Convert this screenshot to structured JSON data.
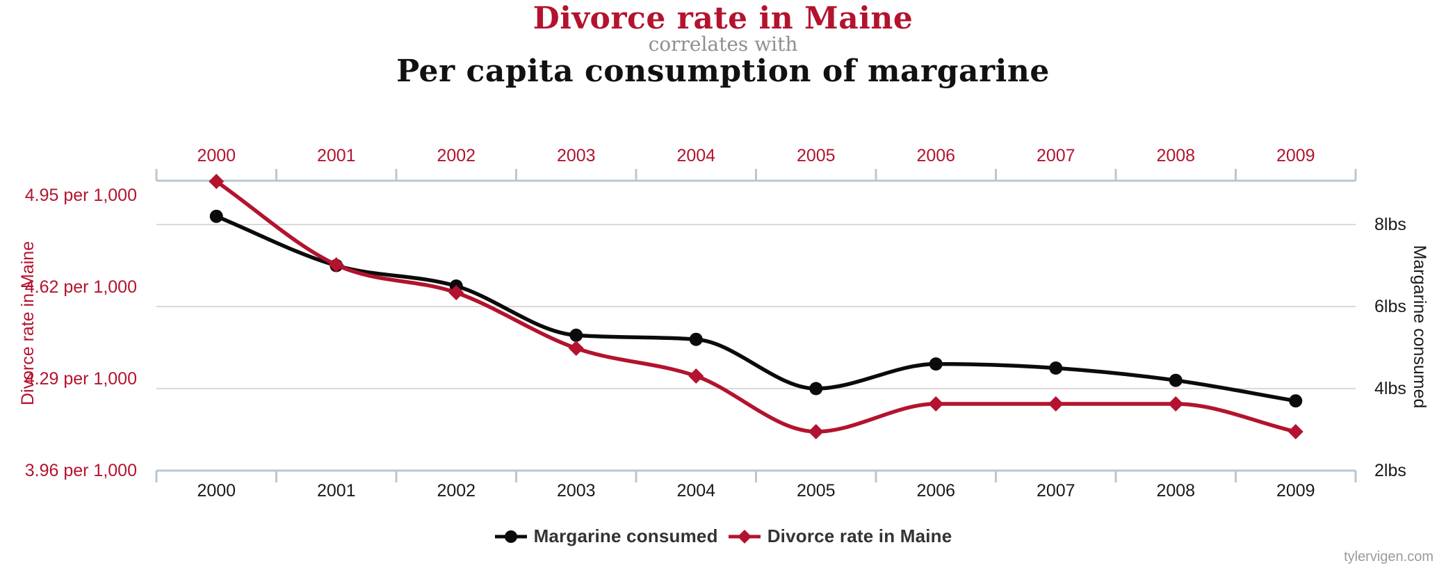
{
  "header": {
    "title_primary": "Divorce rate in Maine",
    "connector": "correlates with",
    "title_secondary": "Per capita consumption of margarine"
  },
  "footer": {
    "credit": "tylervigen.com"
  },
  "colors": {
    "red": "#b3132e",
    "black": "#0b0b0b",
    "axis_line": "#b9c7d3",
    "gridline": "#d9d9d9",
    "connector_gray": "#8f8f8f",
    "credit_gray": "#9b9b9b",
    "legend_text": "#333333",
    "bottom_year_text": "#1a1a1a"
  },
  "chart_data": {
    "type": "line",
    "x": [
      2000,
      2001,
      2002,
      2003,
      2004,
      2005,
      2006,
      2007,
      2008,
      2009
    ],
    "series": [
      {
        "name": "Margarine consumed",
        "axis": "right",
        "color": "#0b0b0b",
        "marker": "circle",
        "units": "lbs",
        "values": [
          8.2,
          7,
          6.5,
          5.3,
          5.2,
          4,
          4.6,
          4.5,
          4.2,
          3.7
        ]
      },
      {
        "name": "Divorce rate in Maine",
        "axis": "left",
        "color": "#b3132e",
        "marker": "diamond",
        "units": "per 1,000",
        "values": [
          5,
          4.7,
          4.6,
          4.4,
          4.3,
          4.1,
          4.2,
          4.2,
          4.2,
          4.1
        ]
      }
    ],
    "left_axis": {
      "title": "Divorce rate in Maine",
      "tick_labels": [
        "4.95 per 1,000",
        "4.62 per 1,000",
        "4.29 per 1,000",
        "3.96 per 1,000"
      ],
      "tick_values": [
        4.95,
        4.62,
        4.29,
        3.96
      ]
    },
    "right_axis": {
      "title": "Margarine consumed",
      "tick_labels": [
        "8lbs",
        "6lbs",
        "4lbs",
        "2lbs"
      ],
      "tick_values": [
        8,
        6,
        4,
        2
      ]
    },
    "legend": [
      "Margarine consumed",
      "Divorce rate in Maine"
    ],
    "smoothing": "monotone",
    "grid": {
      "horizontal_only": true,
      "from_axis": "right"
    }
  }
}
